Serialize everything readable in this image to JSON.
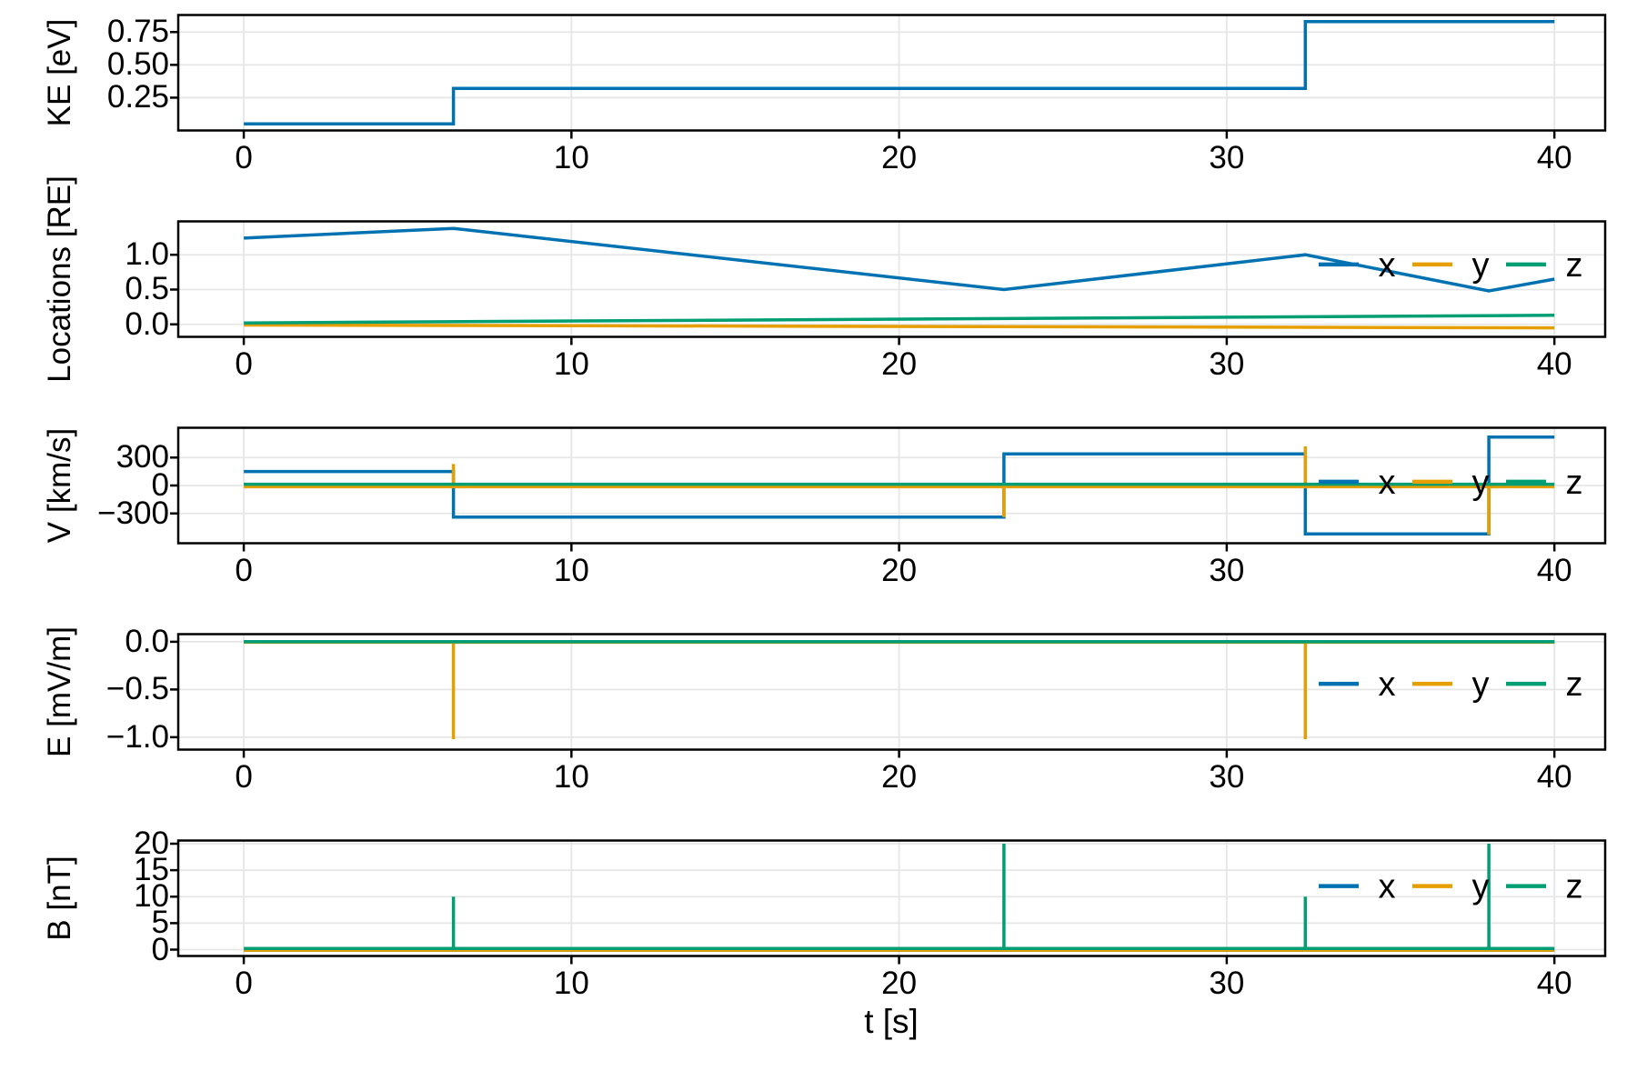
{
  "figure": {
    "xlabel": "t [s]",
    "background": "#FFFFFF",
    "colors": {
      "x": "#0072B2",
      "y": "#E69F00",
      "z": "#009E73",
      "grid": "#E6E6E6",
      "axis": "#000000"
    },
    "legend_labels": [
      "x",
      "y",
      "z"
    ]
  },
  "chart_data": {
    "type": "line",
    "xlabel": "t [s]",
    "xlim": [
      -2,
      41.55
    ],
    "xticks": [
      0,
      10,
      20,
      30,
      40
    ],
    "xtick_labels": [
      "0",
      "10",
      "20",
      "30",
      "40"
    ],
    "panels": [
      {
        "id": "ke",
        "ylabel": "KE [eV]",
        "ylim": [
          0,
          0.88
        ],
        "yticks": [
          0.25,
          0.5,
          0.75
        ],
        "ytick_labels": [
          "0.25",
          "0.50",
          "0.75"
        ],
        "legend_y": null,
        "series": [
          {
            "name": "x",
            "points": [
              [
                0,
                0.05
              ],
              [
                6.4,
                0.05
              ],
              [
                6.4,
                0.32
              ],
              [
                32.4,
                0.32
              ],
              [
                32.4,
                0.83
              ],
              [
                40,
                0.83
              ]
            ]
          }
        ]
      },
      {
        "id": "locations",
        "ylabel": "Locations [RE]",
        "ylim": [
          -0.18,
          1.48
        ],
        "yticks": [
          0,
          0.5,
          1
        ],
        "ytick_labels": [
          "0.0",
          "0.5",
          "1.0"
        ],
        "legend_y": 0.86,
        "series": [
          {
            "name": "x",
            "points": [
              [
                0,
                1.24
              ],
              [
                6.4,
                1.38
              ],
              [
                23.2,
                0.5
              ],
              [
                32.4,
                1.0
              ],
              [
                38,
                0.48
              ],
              [
                40,
                0.65
              ]
            ]
          },
          {
            "name": "y",
            "points": [
              [
                0,
                -0.01
              ],
              [
                40,
                -0.05
              ]
            ]
          },
          {
            "name": "z",
            "points": [
              [
                0,
                0.02
              ],
              [
                40,
                0.13
              ]
            ]
          }
        ]
      },
      {
        "id": "v",
        "ylabel": "V [km/s]",
        "ylim": [
          -620,
          620
        ],
        "yticks": [
          -300,
          0,
          300
        ],
        "ytick_labels": [
          "−300",
          "0",
          "300"
        ],
        "legend_y": 40,
        "series": [
          {
            "name": "x",
            "points": [
              [
                0,
                150
              ],
              [
                6.4,
                150
              ],
              [
                6.4,
                -340
              ],
              [
                23.2,
                -340
              ],
              [
                23.2,
                340
              ],
              [
                32.4,
                340
              ],
              [
                32.4,
                -520
              ],
              [
                38,
                -520
              ],
              [
                38,
                520
              ],
              [
                40,
                520
              ]
            ]
          },
          {
            "name": "y",
            "points": [
              [
                0,
                -14
              ],
              [
                6.4,
                -14
              ],
              [
                6.4,
                230
              ],
              [
                6.4,
                -14
              ],
              [
                23.2,
                -14
              ],
              [
                23.2,
                -340
              ],
              [
                23.2,
                -14
              ],
              [
                32.4,
                -14
              ],
              [
                32.4,
                420
              ],
              [
                32.4,
                -14
              ],
              [
                38,
                -14
              ],
              [
                38,
                -530
              ],
              [
                38,
                -14
              ],
              [
                40,
                -14
              ]
            ]
          },
          {
            "name": "z",
            "points": [
              [
                0,
                14
              ],
              [
                40,
                14
              ]
            ]
          }
        ]
      },
      {
        "id": "e",
        "ylabel": "E [mV/m]",
        "ylim": [
          -1.13,
          0.08
        ],
        "yticks": [
          -1,
          -0.5,
          0
        ],
        "ytick_labels": [
          "−1.0",
          "−0.5",
          "0.0"
        ],
        "legend_y": -0.44,
        "series": [
          {
            "name": "x",
            "points": [
              [
                0,
                0
              ],
              [
                40,
                0
              ]
            ]
          },
          {
            "name": "y",
            "points": [
              [
                0,
                -0.005
              ],
              [
                6.4,
                -0.005
              ],
              [
                6.4,
                -1.02
              ],
              [
                6.4,
                -0.005
              ],
              [
                32.4,
                -0.005
              ],
              [
                32.4,
                -1.02
              ],
              [
                32.4,
                -0.005
              ],
              [
                40,
                -0.005
              ]
            ]
          },
          {
            "name": "z",
            "points": [
              [
                0,
                0
              ],
              [
                40,
                0
              ]
            ]
          }
        ]
      },
      {
        "id": "b",
        "ylabel": "B [nT]",
        "ylim": [
          -1.2,
          20.6
        ],
        "yticks": [
          0,
          5,
          10,
          15,
          20
        ],
        "ytick_labels": [
          "0",
          "5",
          "10",
          "15",
          "20"
        ],
        "legend_y": 12,
        "series": [
          {
            "name": "x",
            "points": [
              [
                0,
                -0.1
              ],
              [
                40,
                -0.1
              ]
            ]
          },
          {
            "name": "y",
            "points": [
              [
                0,
                -0.1
              ],
              [
                40,
                -0.1
              ]
            ]
          },
          {
            "name": "z",
            "points": [
              [
                0,
                0.2
              ],
              [
                6.4,
                0.2
              ],
              [
                6.4,
                10
              ],
              [
                6.4,
                0.2
              ],
              [
                23.2,
                0.2
              ],
              [
                23.2,
                20
              ],
              [
                23.2,
                0.2
              ],
              [
                32.4,
                0.2
              ],
              [
                32.4,
                10
              ],
              [
                32.4,
                0.2
              ],
              [
                38,
                0.2
              ],
              [
                38,
                20
              ],
              [
                38,
                0.2
              ],
              [
                40,
                0.2
              ]
            ]
          }
        ]
      }
    ]
  }
}
